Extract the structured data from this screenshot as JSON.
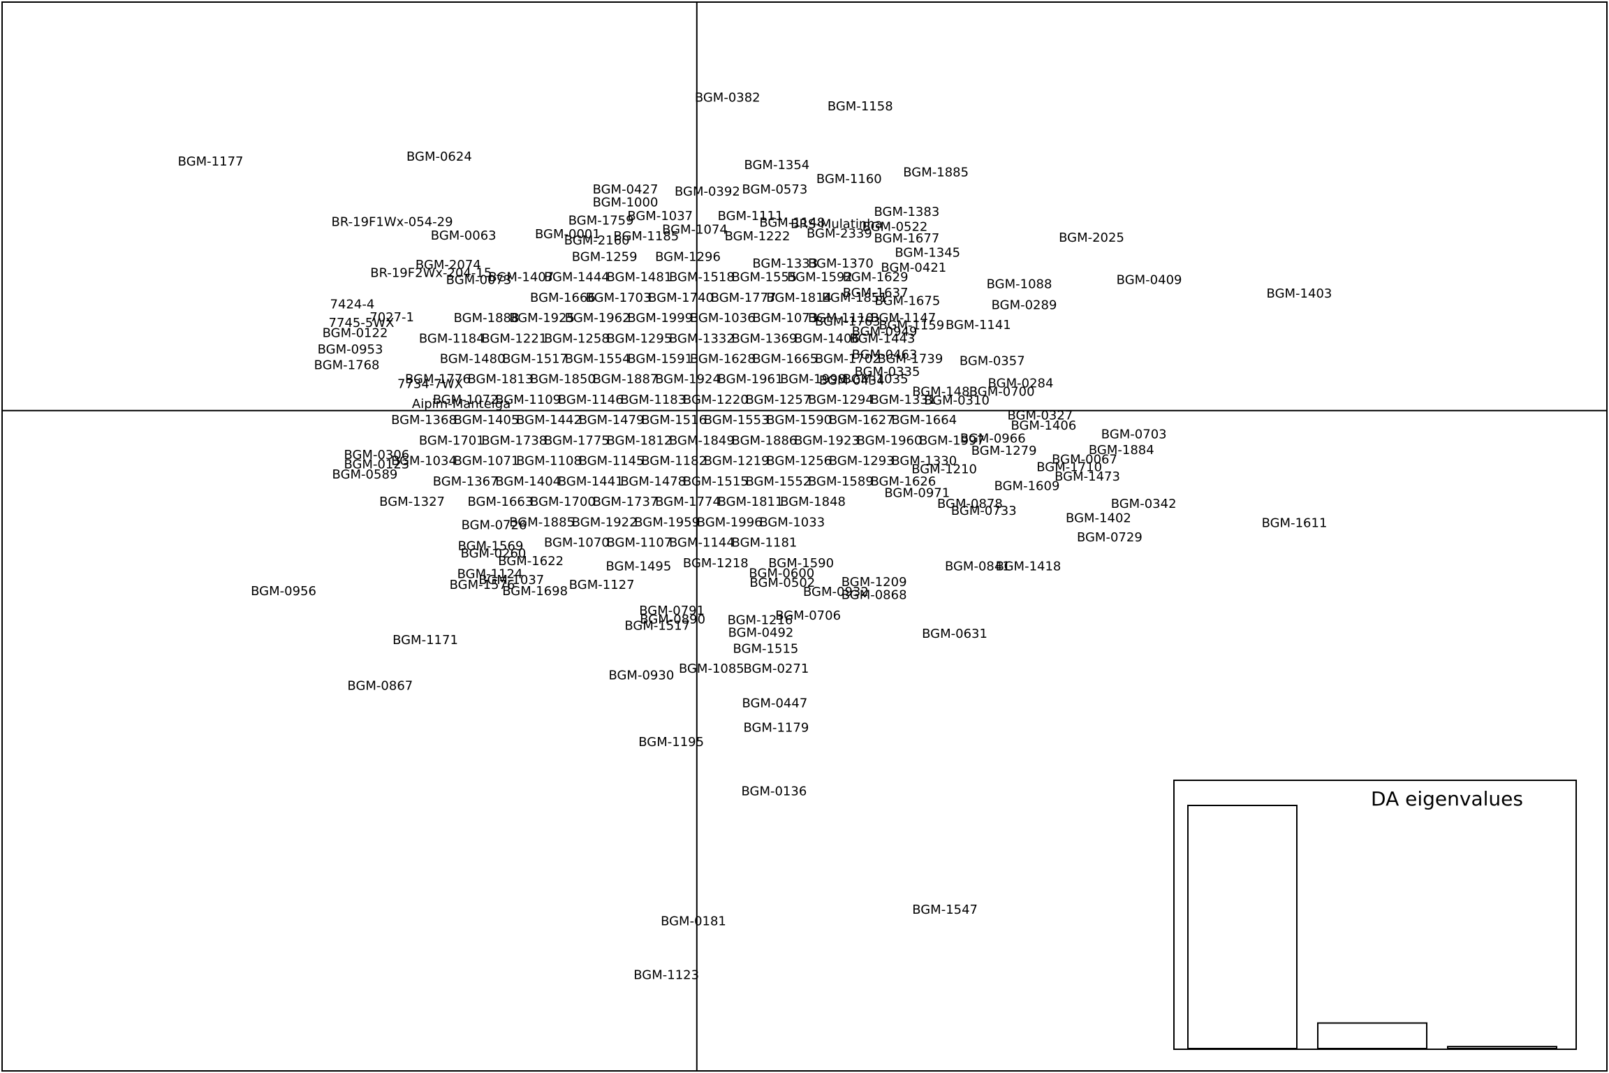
{
  "chart_data": {
    "type": "scatter",
    "title": "",
    "xlabel": "",
    "ylabel": "",
    "xlim": [
      -1.0,
      1.31
    ],
    "ylim": [
      -0.97,
      0.6
    ],
    "grid": false,
    "axes_through_origin": true,
    "points": [
      {
        "label": "BGM-0382",
        "x": -0.003,
        "y": 0.454
      },
      {
        "label": "BGM-1158",
        "x": 0.188,
        "y": 0.441
      },
      {
        "label": "BGM-1177",
        "x": -0.747,
        "y": 0.36
      },
      {
        "label": "BGM-0624",
        "x": -0.418,
        "y": 0.367
      },
      {
        "label": "BGM-1354",
        "x": 0.068,
        "y": 0.355
      },
      {
        "label": "BGM-1160",
        "x": 0.172,
        "y": 0.334
      },
      {
        "label": "BGM-1885",
        "x": 0.297,
        "y": 0.344
      },
      {
        "label": "BGM-0427",
        "x": -0.15,
        "y": 0.319
      },
      {
        "label": "BGM-0392",
        "x": -0.032,
        "y": 0.316
      },
      {
        "label": "BGM-0573",
        "x": 0.065,
        "y": 0.319
      },
      {
        "label": "BGM-1383",
        "x": 0.255,
        "y": 0.286
      },
      {
        "label": "BR-19F1Wx-054-29",
        "x": -0.526,
        "y": 0.271
      },
      {
        "label": "BGM-1759",
        "x": -0.185,
        "y": 0.273
      },
      {
        "label": "BRS-Mulatinha",
        "x": 0.135,
        "y": 0.268
      },
      {
        "label": "BGM-0522",
        "x": 0.238,
        "y": 0.264
      },
      {
        "label": "BGM-0063",
        "x": -0.383,
        "y": 0.251
      },
      {
        "label": "BGM-0001",
        "x": -0.233,
        "y": 0.253
      },
      {
        "label": "BGM-2160",
        "x": -0.191,
        "y": 0.244
      },
      {
        "label": "BGM-2339",
        "x": 0.158,
        "y": 0.254
      },
      {
        "label": "BGM-1677",
        "x": 0.255,
        "y": 0.247
      },
      {
        "label": "BGM-2025",
        "x": 0.521,
        "y": 0.248
      },
      {
        "label": "BGM-1345",
        "x": 0.285,
        "y": 0.226
      },
      {
        "label": "BGM-2074",
        "x": -0.405,
        "y": 0.208
      },
      {
        "label": "BR-19F2Wx-204-15",
        "x": -0.47,
        "y": 0.196
      },
      {
        "label": "BGM-0421",
        "x": 0.265,
        "y": 0.204
      },
      {
        "label": "BGM-0073",
        "x": -0.361,
        "y": 0.186
      },
      {
        "label": "BGM-1088",
        "x": 0.417,
        "y": 0.18
      },
      {
        "label": "BGM-0409",
        "x": 0.604,
        "y": 0.186
      },
      {
        "label": "BGM-1403",
        "x": 0.82,
        "y": 0.166
      },
      {
        "label": "BGM-1637",
        "x": 0.21,
        "y": 0.167
      },
      {
        "label": "BGM-1675",
        "x": 0.256,
        "y": 0.155
      },
      {
        "label": "BGM-0289",
        "x": 0.424,
        "y": 0.149
      },
      {
        "label": "7424-4",
        "x": -0.528,
        "y": 0.15
      },
      {
        "label": "7027-1",
        "x": -0.471,
        "y": 0.131
      },
      {
        "label": "7745-5WX",
        "x": -0.53,
        "y": 0.123
      },
      {
        "label": "BGM-0122",
        "x": -0.539,
        "y": 0.108
      },
      {
        "label": "BGM-0953",
        "x": -0.546,
        "y": 0.084
      },
      {
        "label": "BGM-1768",
        "x": -0.551,
        "y": 0.061
      },
      {
        "label": "BGM-0949",
        "x": 0.223,
        "y": 0.11
      },
      {
        "label": "BGM-1141",
        "x": 0.358,
        "y": 0.12
      },
      {
        "label": "BGM-1763",
        "x": 0.17,
        "y": 0.125
      },
      {
        "label": "BGM-1159",
        "x": 0.262,
        "y": 0.119
      },
      {
        "label": "BGM-0357",
        "x": 0.378,
        "y": 0.067
      },
      {
        "label": "BGM-0335",
        "x": 0.227,
        "y": 0.051
      },
      {
        "label": "BGM-0463",
        "x": 0.223,
        "y": 0.076
      },
      {
        "label": "BGM-0434",
        "x": 0.176,
        "y": 0.038
      },
      {
        "label": "7734-7WX",
        "x": -0.431,
        "y": 0.033
      },
      {
        "label": "Aipim-Manteiga",
        "x": -0.41,
        "y": 0.004
      },
      {
        "label": "BGM-0284",
        "x": 0.419,
        "y": 0.034
      },
      {
        "label": "BGM-0700",
        "x": 0.392,
        "y": 0.022
      },
      {
        "label": "BGM-1483",
        "x": 0.31,
        "y": 0.022
      },
      {
        "label": "BGM-0310",
        "x": 0.327,
        "y": 0.009
      },
      {
        "label": "BGM-0327",
        "x": 0.447,
        "y": -0.013
      },
      {
        "label": "BGM-1406",
        "x": 0.452,
        "y": -0.028
      },
      {
        "label": "BGM-0703",
        "x": 0.582,
        "y": -0.041
      },
      {
        "label": "BGM-0966",
        "x": 0.379,
        "y": -0.047
      },
      {
        "label": "BGM-1884",
        "x": 0.564,
        "y": -0.064
      },
      {
        "label": "BGM-1279",
        "x": 0.395,
        "y": -0.065
      },
      {
        "label": "BGM-0067",
        "x": 0.511,
        "y": -0.078
      },
      {
        "label": "BGM-1710",
        "x": 0.489,
        "y": -0.089
      },
      {
        "label": "BGM-1473",
        "x": 0.515,
        "y": -0.103
      },
      {
        "label": "BGM-1609",
        "x": 0.428,
        "y": -0.117
      },
      {
        "label": "BGM-1210",
        "x": 0.309,
        "y": -0.092
      },
      {
        "label": "BGM-0971",
        "x": 0.27,
        "y": -0.127
      },
      {
        "label": "BGM-0342",
        "x": 0.596,
        "y": -0.143
      },
      {
        "label": "BGM-0878",
        "x": 0.346,
        "y": -0.143
      },
      {
        "label": "BGM-0733",
        "x": 0.366,
        "y": -0.153
      },
      {
        "label": "BGM-1402",
        "x": 0.531,
        "y": -0.164
      },
      {
        "label": "BGM-1611",
        "x": 0.813,
        "y": -0.171
      },
      {
        "label": "BGM-0729",
        "x": 0.547,
        "y": -0.192
      },
      {
        "label": "BGM-0306",
        "x": -0.508,
        "y": -0.071
      },
      {
        "label": "BGM-0123",
        "x": -0.508,
        "y": -0.085
      },
      {
        "label": "BGM-0589",
        "x": -0.525,
        "y": -0.1
      },
      {
        "label": "BGM-1327",
        "x": -0.457,
        "y": -0.14
      },
      {
        "label": "BGM-0726",
        "x": -0.339,
        "y": -0.174
      },
      {
        "label": "BGM-1569",
        "x": -0.344,
        "y": -0.205
      },
      {
        "label": "BGM-0260",
        "x": -0.34,
        "y": -0.216
      },
      {
        "label": "BGM-1622",
        "x": -0.286,
        "y": -0.227
      },
      {
        "label": "BGM-1124",
        "x": -0.345,
        "y": -0.246
      },
      {
        "label": "BGM-1037",
        "x": -0.314,
        "y": -0.255
      },
      {
        "label": "BGM-1576",
        "x": -0.356,
        "y": -0.262
      },
      {
        "label": "BGM-1127",
        "x": -0.184,
        "y": -0.262
      },
      {
        "label": "BGM-1698",
        "x": -0.28,
        "y": -0.271
      },
      {
        "label": "BGM-0956",
        "x": -0.642,
        "y": -0.271
      },
      {
        "label": "BGM-1495",
        "x": -0.131,
        "y": -0.235
      },
      {
        "label": "BGM-1590",
        "x": 0.103,
        "y": -0.23
      },
      {
        "label": "BGM-0600",
        "x": 0.075,
        "y": -0.245
      },
      {
        "label": "BGM-0502",
        "x": 0.076,
        "y": -0.259
      },
      {
        "label": "BGM-0932",
        "x": 0.153,
        "y": -0.272
      },
      {
        "label": "BGM-1209",
        "x": 0.208,
        "y": -0.258
      },
      {
        "label": "BGM-0868",
        "x": 0.208,
        "y": -0.277
      },
      {
        "label": "BGM-0841",
        "x": 0.357,
        "y": -0.235
      },
      {
        "label": "BGM-1418",
        "x": 0.43,
        "y": -0.235
      },
      {
        "label": "BGM-0791",
        "x": -0.083,
        "y": -0.3
      },
      {
        "label": "BGM-0890",
        "x": -0.082,
        "y": -0.313
      },
      {
        "label": "BGM-1517",
        "x": -0.104,
        "y": -0.322
      },
      {
        "label": "BGM-0706",
        "x": 0.113,
        "y": -0.307
      },
      {
        "label": "BGM-1216",
        "x": 0.044,
        "y": -0.314
      },
      {
        "label": "BGM-0492",
        "x": 0.045,
        "y": -0.332
      },
      {
        "label": "BGM-0631",
        "x": 0.324,
        "y": -0.334
      },
      {
        "label": "BGM-1171",
        "x": -0.438,
        "y": -0.343
      },
      {
        "label": "BGM-1515",
        "x": 0.052,
        "y": -0.356
      },
      {
        "label": "BGM-0271",
        "x": 0.067,
        "y": -0.385
      },
      {
        "label": "BGM-1085",
        "x": -0.026,
        "y": -0.385
      },
      {
        "label": "BGM-0930",
        "x": -0.127,
        "y": -0.395
      },
      {
        "label": "BGM-0867",
        "x": -0.503,
        "y": -0.41
      },
      {
        "label": "BGM-0447",
        "x": 0.065,
        "y": -0.436
      },
      {
        "label": "BGM-1179",
        "x": 0.067,
        "y": -0.472
      },
      {
        "label": "BGM-1195",
        "x": -0.084,
        "y": -0.493
      },
      {
        "label": "BGM-0136",
        "x": 0.064,
        "y": -0.565
      },
      {
        "label": "BGM-1547",
        "x": 0.31,
        "y": -0.739
      },
      {
        "label": "BGM-0181",
        "x": -0.052,
        "y": -0.756
      },
      {
        "label": "BGM-1123",
        "x": -0.091,
        "y": -0.835
      }
    ],
    "cluster_points": [
      [
        -0.15,
        0.3
      ],
      [
        -0.1,
        0.28
      ],
      [
        -0.05,
        0.26
      ],
      [
        0.03,
        0.28
      ],
      [
        0.09,
        0.27
      ],
      [
        -0.12,
        0.25
      ],
      [
        0.04,
        0.25
      ],
      [
        -0.18,
        0.22
      ],
      [
        -0.06,
        0.22
      ],
      [
        0.08,
        0.21
      ],
      [
        0.16,
        0.21
      ],
      [
        -0.3,
        0.19
      ],
      [
        -0.22,
        0.19
      ],
      [
        -0.13,
        0.19
      ],
      [
        -0.04,
        0.19
      ],
      [
        0.05,
        0.19
      ],
      [
        0.13,
        0.19
      ],
      [
        0.21,
        0.19
      ],
      [
        -0.24,
        0.16
      ],
      [
        -0.16,
        0.16
      ],
      [
        -0.07,
        0.16
      ],
      [
        0.02,
        0.16
      ],
      [
        0.1,
        0.16
      ],
      [
        0.18,
        0.16
      ],
      [
        -0.35,
        0.13
      ],
      [
        -0.27,
        0.13
      ],
      [
        -0.19,
        0.13
      ],
      [
        -0.1,
        0.13
      ],
      [
        -0.01,
        0.13
      ],
      [
        0.08,
        0.13
      ],
      [
        0.16,
        0.13
      ],
      [
        0.25,
        0.13
      ],
      [
        -0.4,
        0.1
      ],
      [
        -0.31,
        0.1
      ],
      [
        -0.22,
        0.1
      ],
      [
        -0.13,
        0.1
      ],
      [
        -0.04,
        0.1
      ],
      [
        0.05,
        0.1
      ],
      [
        0.14,
        0.1
      ],
      [
        0.22,
        0.1
      ],
      [
        -0.37,
        0.07
      ],
      [
        -0.28,
        0.07
      ],
      [
        -0.19,
        0.07
      ],
      [
        -0.1,
        0.07
      ],
      [
        -0.01,
        0.07
      ],
      [
        0.08,
        0.07
      ],
      [
        0.17,
        0.07
      ],
      [
        0.26,
        0.07
      ],
      [
        -0.42,
        0.04
      ],
      [
        -0.33,
        0.04
      ],
      [
        -0.24,
        0.04
      ],
      [
        -0.15,
        0.04
      ],
      [
        -0.06,
        0.04
      ],
      [
        0.03,
        0.04
      ],
      [
        0.12,
        0.04
      ],
      [
        0.21,
        0.04
      ],
      [
        -0.38,
        0.01
      ],
      [
        -0.29,
        0.01
      ],
      [
        -0.2,
        0.01
      ],
      [
        -0.11,
        0.01
      ],
      [
        -0.02,
        0.01
      ],
      [
        0.07,
        0.01
      ],
      [
        0.16,
        0.01
      ],
      [
        0.25,
        0.01
      ],
      [
        -0.44,
        -0.02
      ],
      [
        -0.35,
        -0.02
      ],
      [
        -0.26,
        -0.02
      ],
      [
        -0.17,
        -0.02
      ],
      [
        -0.08,
        -0.02
      ],
      [
        0.01,
        -0.02
      ],
      [
        0.1,
        -0.02
      ],
      [
        0.19,
        -0.02
      ],
      [
        0.28,
        -0.02
      ],
      [
        -0.4,
        -0.05
      ],
      [
        -0.31,
        -0.05
      ],
      [
        -0.22,
        -0.05
      ],
      [
        -0.13,
        -0.05
      ],
      [
        -0.04,
        -0.05
      ],
      [
        0.05,
        -0.05
      ],
      [
        0.14,
        -0.05
      ],
      [
        0.23,
        -0.05
      ],
      [
        0.32,
        -0.05
      ],
      [
        -0.44,
        -0.08
      ],
      [
        -0.35,
        -0.08
      ],
      [
        -0.26,
        -0.08
      ],
      [
        -0.17,
        -0.08
      ],
      [
        -0.08,
        -0.08
      ],
      [
        0.01,
        -0.08
      ],
      [
        0.1,
        -0.08
      ],
      [
        0.19,
        -0.08
      ],
      [
        0.28,
        -0.08
      ],
      [
        -0.38,
        -0.11
      ],
      [
        -0.29,
        -0.11
      ],
      [
        -0.2,
        -0.11
      ],
      [
        -0.11,
        -0.11
      ],
      [
        -0.02,
        -0.11
      ],
      [
        0.07,
        -0.11
      ],
      [
        0.16,
        -0.11
      ],
      [
        0.25,
        -0.11
      ],
      [
        -0.33,
        -0.14
      ],
      [
        -0.24,
        -0.14
      ],
      [
        -0.15,
        -0.14
      ],
      [
        -0.06,
        -0.14
      ],
      [
        0.03,
        -0.14
      ],
      [
        0.12,
        -0.14
      ],
      [
        -0.27,
        -0.17
      ],
      [
        -0.18,
        -0.17
      ],
      [
        -0.09,
        -0.17
      ],
      [
        0.0,
        -0.17
      ],
      [
        0.09,
        -0.17
      ],
      [
        -0.22,
        -0.2
      ],
      [
        -0.13,
        -0.2
      ],
      [
        -0.04,
        -0.2
      ],
      [
        0.05,
        -0.2
      ],
      [
        -0.02,
        -0.23
      ]
    ],
    "inset": {
      "title": "DA eigenvalues",
      "type": "bar",
      "values": [
        1.0,
        0.105,
        0.008
      ]
    }
  }
}
